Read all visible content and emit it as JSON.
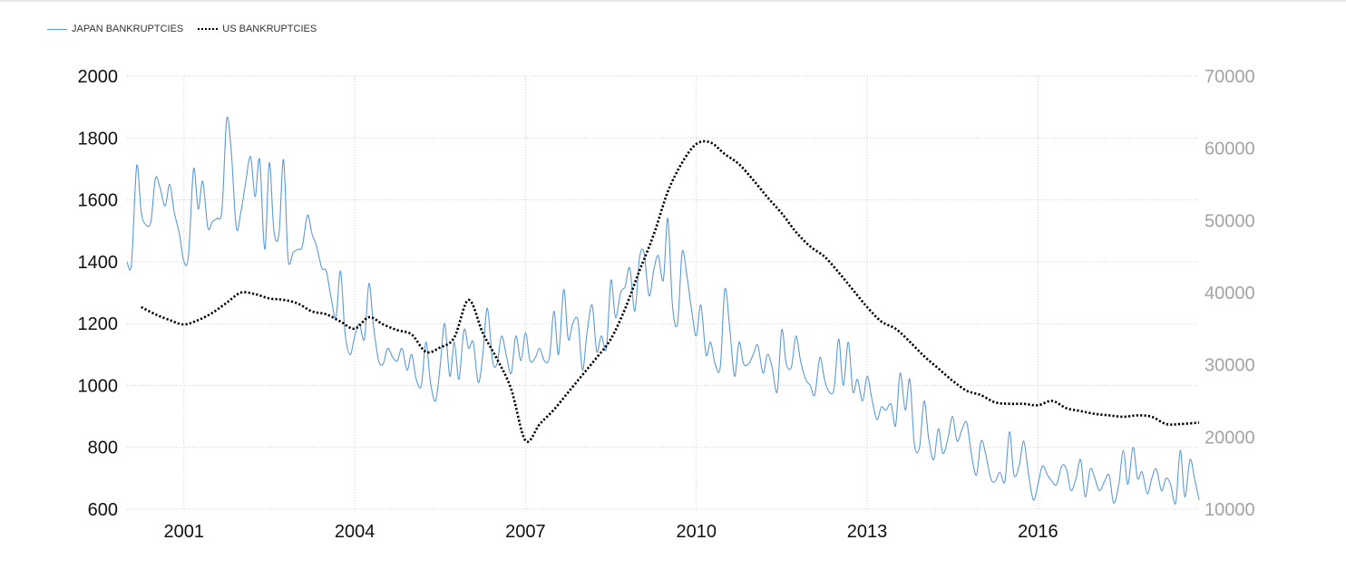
{
  "chart_data": {
    "type": "line",
    "title": "",
    "xlabel": "",
    "ylabel": "",
    "legend_position": "top-left",
    "grid": true,
    "x_ticks": [
      "2001",
      "2004",
      "2007",
      "2010",
      "2013",
      "2016"
    ],
    "x_range": [
      2000.0,
      2018.83
    ],
    "y_left_ticks": [
      "2000",
      "1800",
      "1600",
      "1400",
      "1200",
      "1000",
      "800",
      "600"
    ],
    "y_left_range": [
      600,
      2000
    ],
    "y_right_ticks": [
      "70000",
      "60000",
      "50000",
      "40000",
      "30000",
      "20000",
      "10000"
    ],
    "y_right_range": [
      10000,
      70000
    ],
    "series": [
      {
        "name": "JAPAN BANKRUPTCIES",
        "axis": "left",
        "color": "#5b9bd5",
        "style": "solid",
        "points": [
          [
            2000.0,
            1400
          ],
          [
            2000.08,
            1395
          ],
          [
            2000.17,
            1710
          ],
          [
            2000.25,
            1560
          ],
          [
            2000.33,
            1520
          ],
          [
            2000.42,
            1530
          ],
          [
            2000.5,
            1670
          ],
          [
            2000.58,
            1640
          ],
          [
            2000.67,
            1580
          ],
          [
            2000.75,
            1650
          ],
          [
            2000.83,
            1560
          ],
          [
            2000.92,
            1490
          ],
          [
            2001.0,
            1400
          ],
          [
            2001.08,
            1420
          ],
          [
            2001.17,
            1700
          ],
          [
            2001.25,
            1570
          ],
          [
            2001.33,
            1660
          ],
          [
            2001.42,
            1510
          ],
          [
            2001.5,
            1530
          ],
          [
            2001.58,
            1540
          ],
          [
            2001.67,
            1570
          ],
          [
            2001.75,
            1860
          ],
          [
            2001.83,
            1760
          ],
          [
            2001.92,
            1510
          ],
          [
            2002.0,
            1560
          ],
          [
            2002.08,
            1650
          ],
          [
            2002.17,
            1740
          ],
          [
            2002.25,
            1610
          ],
          [
            2002.33,
            1730
          ],
          [
            2002.42,
            1440
          ],
          [
            2002.5,
            1720
          ],
          [
            2002.58,
            1500
          ],
          [
            2002.67,
            1490
          ],
          [
            2002.75,
            1730
          ],
          [
            2002.83,
            1410
          ],
          [
            2002.92,
            1430
          ],
          [
            2003.0,
            1440
          ],
          [
            2003.08,
            1450
          ],
          [
            2003.17,
            1550
          ],
          [
            2003.25,
            1490
          ],
          [
            2003.33,
            1450
          ],
          [
            2003.42,
            1380
          ],
          [
            2003.5,
            1370
          ],
          [
            2003.58,
            1290
          ],
          [
            2003.67,
            1220
          ],
          [
            2003.75,
            1370
          ],
          [
            2003.83,
            1170
          ],
          [
            2003.92,
            1100
          ],
          [
            2004.0,
            1160
          ],
          [
            2004.08,
            1200
          ],
          [
            2004.17,
            1150
          ],
          [
            2004.25,
            1330
          ],
          [
            2004.33,
            1190
          ],
          [
            2004.42,
            1080
          ],
          [
            2004.5,
            1070
          ],
          [
            2004.58,
            1120
          ],
          [
            2004.67,
            1090
          ],
          [
            2004.75,
            1080
          ],
          [
            2004.83,
            1120
          ],
          [
            2004.92,
            1050
          ],
          [
            2005.0,
            1100
          ],
          [
            2005.08,
            1020
          ],
          [
            2005.17,
            1000
          ],
          [
            2005.25,
            1140
          ],
          [
            2005.33,
            1010
          ],
          [
            2005.42,
            950
          ],
          [
            2005.5,
            1060
          ],
          [
            2005.58,
            1200
          ],
          [
            2005.67,
            1030
          ],
          [
            2005.75,
            1140
          ],
          [
            2005.83,
            1020
          ],
          [
            2005.92,
            1180
          ],
          [
            2006.0,
            1120
          ],
          [
            2006.08,
            1140
          ],
          [
            2006.17,
            1010
          ],
          [
            2006.25,
            1100
          ],
          [
            2006.33,
            1250
          ],
          [
            2006.42,
            1080
          ],
          [
            2006.5,
            1070
          ],
          [
            2006.58,
            1160
          ],
          [
            2006.67,
            1090
          ],
          [
            2006.75,
            1040
          ],
          [
            2006.83,
            1160
          ],
          [
            2006.92,
            1080
          ],
          [
            2007.0,
            1170
          ],
          [
            2007.08,
            1080
          ],
          [
            2007.17,
            1090
          ],
          [
            2007.25,
            1120
          ],
          [
            2007.33,
            1080
          ],
          [
            2007.42,
            1090
          ],
          [
            2007.5,
            1240
          ],
          [
            2007.58,
            1100
          ],
          [
            2007.67,
            1310
          ],
          [
            2007.75,
            1150
          ],
          [
            2007.83,
            1200
          ],
          [
            2007.92,
            1210
          ],
          [
            2008.0,
            1050
          ],
          [
            2008.08,
            1170
          ],
          [
            2008.17,
            1260
          ],
          [
            2008.25,
            1110
          ],
          [
            2008.33,
            1160
          ],
          [
            2008.42,
            1120
          ],
          [
            2008.5,
            1340
          ],
          [
            2008.58,
            1220
          ],
          [
            2008.67,
            1300
          ],
          [
            2008.75,
            1320
          ],
          [
            2008.83,
            1380
          ],
          [
            2008.92,
            1240
          ],
          [
            2009.0,
            1410
          ],
          [
            2009.08,
            1430
          ],
          [
            2009.17,
            1290
          ],
          [
            2009.25,
            1370
          ],
          [
            2009.33,
            1420
          ],
          [
            2009.42,
            1340
          ],
          [
            2009.5,
            1540
          ],
          [
            2009.58,
            1260
          ],
          [
            2009.67,
            1200
          ],
          [
            2009.75,
            1430
          ],
          [
            2009.83,
            1360
          ],
          [
            2009.92,
            1240
          ],
          [
            2010.0,
            1160
          ],
          [
            2010.08,
            1260
          ],
          [
            2010.17,
            1100
          ],
          [
            2010.25,
            1140
          ],
          [
            2010.33,
            1070
          ],
          [
            2010.42,
            1060
          ],
          [
            2010.5,
            1310
          ],
          [
            2010.58,
            1200
          ],
          [
            2010.67,
            1030
          ],
          [
            2010.75,
            1140
          ],
          [
            2010.83,
            1070
          ],
          [
            2010.92,
            1070
          ],
          [
            2011.0,
            1100
          ],
          [
            2011.08,
            1130
          ],
          [
            2011.17,
            1040
          ],
          [
            2011.25,
            1100
          ],
          [
            2011.33,
            1060
          ],
          [
            2011.42,
            980
          ],
          [
            2011.5,
            1180
          ],
          [
            2011.58,
            1070
          ],
          [
            2011.67,
            1060
          ],
          [
            2011.75,
            1160
          ],
          [
            2011.83,
            1080
          ],
          [
            2011.92,
            1020
          ],
          [
            2012.0,
            1000
          ],
          [
            2012.08,
            970
          ],
          [
            2012.17,
            1090
          ],
          [
            2012.25,
            1020
          ],
          [
            2012.33,
            980
          ],
          [
            2012.42,
            990
          ],
          [
            2012.5,
            1150
          ],
          [
            2012.58,
            1000
          ],
          [
            2012.67,
            1140
          ],
          [
            2012.75,
            980
          ],
          [
            2012.83,
            1020
          ],
          [
            2012.92,
            950
          ],
          [
            2013.0,
            1030
          ],
          [
            2013.08,
            960
          ],
          [
            2013.17,
            890
          ],
          [
            2013.25,
            930
          ],
          [
            2013.33,
            920
          ],
          [
            2013.42,
            940
          ],
          [
            2013.5,
            870
          ],
          [
            2013.58,
            1040
          ],
          [
            2013.67,
            920
          ],
          [
            2013.75,
            1020
          ],
          [
            2013.83,
            810
          ],
          [
            2013.92,
            800
          ],
          [
            2014.0,
            950
          ],
          [
            2014.08,
            830
          ],
          [
            2014.17,
            760
          ],
          [
            2014.25,
            860
          ],
          [
            2014.33,
            780
          ],
          [
            2014.42,
            830
          ],
          [
            2014.5,
            900
          ],
          [
            2014.58,
            820
          ],
          [
            2014.67,
            860
          ],
          [
            2014.75,
            880
          ],
          [
            2014.83,
            780
          ],
          [
            2014.92,
            710
          ],
          [
            2015.0,
            820
          ],
          [
            2015.08,
            780
          ],
          [
            2015.17,
            700
          ],
          [
            2015.25,
            690
          ],
          [
            2015.33,
            720
          ],
          [
            2015.42,
            690
          ],
          [
            2015.5,
            850
          ],
          [
            2015.58,
            710
          ],
          [
            2015.67,
            740
          ],
          [
            2015.75,
            820
          ],
          [
            2015.83,
            720
          ],
          [
            2015.92,
            630
          ],
          [
            2016.0,
            680
          ],
          [
            2016.08,
            740
          ],
          [
            2016.17,
            710
          ],
          [
            2016.25,
            690
          ],
          [
            2016.33,
            680
          ],
          [
            2016.42,
            740
          ],
          [
            2016.5,
            730
          ],
          [
            2016.58,
            660
          ],
          [
            2016.67,
            700
          ],
          [
            2016.75,
            760
          ],
          [
            2016.83,
            640
          ],
          [
            2016.92,
            730
          ],
          [
            2017.0,
            700
          ],
          [
            2017.08,
            660
          ],
          [
            2017.17,
            690
          ],
          [
            2017.25,
            710
          ],
          [
            2017.33,
            620
          ],
          [
            2017.42,
            680
          ],
          [
            2017.5,
            790
          ],
          [
            2017.58,
            680
          ],
          [
            2017.67,
            800
          ],
          [
            2017.75,
            700
          ],
          [
            2017.83,
            720
          ],
          [
            2017.92,
            650
          ],
          [
            2018.0,
            700
          ],
          [
            2018.08,
            730
          ],
          [
            2018.17,
            660
          ],
          [
            2018.25,
            700
          ],
          [
            2018.33,
            680
          ],
          [
            2018.42,
            620
          ],
          [
            2018.5,
            790
          ],
          [
            2018.58,
            640
          ],
          [
            2018.67,
            760
          ],
          [
            2018.75,
            700
          ],
          [
            2018.83,
            630
          ]
        ]
      },
      {
        "name": "US BANKRUPTCIES",
        "axis": "right",
        "color": "#000000",
        "style": "dotted",
        "points": [
          [
            2000.25,
            38000
          ],
          [
            2000.5,
            37000
          ],
          [
            2000.75,
            36200
          ],
          [
            2001.0,
            35600
          ],
          [
            2001.25,
            36200
          ],
          [
            2001.5,
            37200
          ],
          [
            2001.75,
            38600
          ],
          [
            2002.0,
            40000
          ],
          [
            2002.25,
            39800
          ],
          [
            2002.5,
            39200
          ],
          [
            2002.75,
            39000
          ],
          [
            2003.0,
            38500
          ],
          [
            2003.25,
            37400
          ],
          [
            2003.5,
            37000
          ],
          [
            2003.75,
            36000
          ],
          [
            2004.0,
            35000
          ],
          [
            2004.25,
            36600
          ],
          [
            2004.5,
            35600
          ],
          [
            2004.75,
            34800
          ],
          [
            2005.0,
            34200
          ],
          [
            2005.25,
            31800
          ],
          [
            2005.5,
            32400
          ],
          [
            2005.75,
            33800
          ],
          [
            2006.0,
            39000
          ],
          [
            2006.25,
            34400
          ],
          [
            2006.5,
            30800
          ],
          [
            2006.75,
            26600
          ],
          [
            2007.0,
            19500
          ],
          [
            2007.25,
            21800
          ],
          [
            2007.5,
            23800
          ],
          [
            2007.75,
            26200
          ],
          [
            2008.0,
            28600
          ],
          [
            2008.25,
            31000
          ],
          [
            2008.5,
            33600
          ],
          [
            2008.75,
            37800
          ],
          [
            2009.0,
            43000
          ],
          [
            2009.25,
            48000
          ],
          [
            2009.5,
            54000
          ],
          [
            2009.75,
            58000
          ],
          [
            2010.0,
            60600
          ],
          [
            2010.25,
            60800
          ],
          [
            2010.5,
            59200
          ],
          [
            2010.75,
            57800
          ],
          [
            2011.0,
            55600
          ],
          [
            2011.25,
            53200
          ],
          [
            2011.5,
            51000
          ],
          [
            2011.75,
            48400
          ],
          [
            2012.0,
            46400
          ],
          [
            2012.25,
            45000
          ],
          [
            2012.5,
            42800
          ],
          [
            2012.75,
            40400
          ],
          [
            2013.0,
            38000
          ],
          [
            2013.25,
            36000
          ],
          [
            2013.5,
            35000
          ],
          [
            2013.75,
            33200
          ],
          [
            2014.0,
            31200
          ],
          [
            2014.25,
            29500
          ],
          [
            2014.5,
            27800
          ],
          [
            2014.75,
            26400
          ],
          [
            2015.0,
            25800
          ],
          [
            2015.25,
            24800
          ],
          [
            2015.5,
            24600
          ],
          [
            2015.75,
            24600
          ],
          [
            2016.0,
            24400
          ],
          [
            2016.25,
            25000
          ],
          [
            2016.5,
            24000
          ],
          [
            2016.75,
            23600
          ],
          [
            2017.0,
            23200
          ],
          [
            2017.25,
            23000
          ],
          [
            2017.5,
            22800
          ],
          [
            2017.75,
            23000
          ],
          [
            2018.0,
            22800
          ],
          [
            2018.25,
            21800
          ],
          [
            2018.5,
            21800
          ],
          [
            2018.83,
            22000
          ]
        ]
      }
    ]
  }
}
